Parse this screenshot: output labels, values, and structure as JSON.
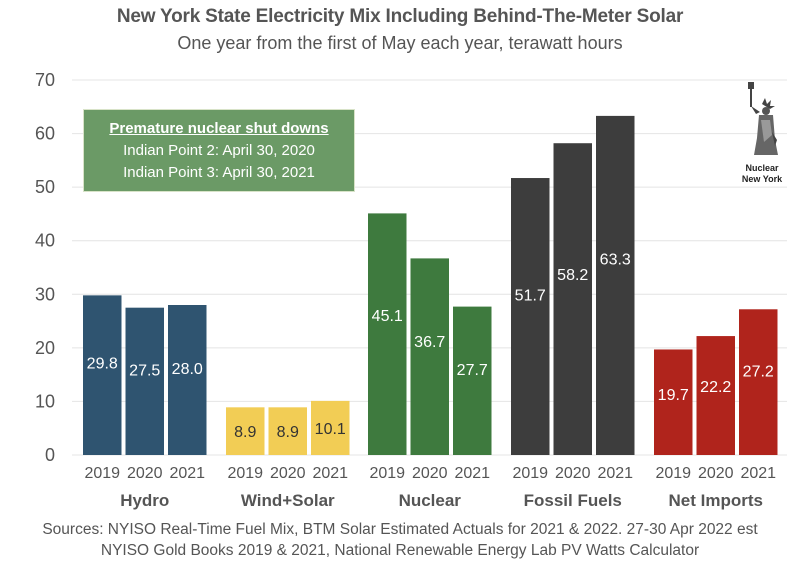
{
  "chart_data": {
    "type": "bar",
    "title": "New York State Electricity Mix Including Behind-The-Meter Solar",
    "subtitle": "One year from the first of May each year, terawatt hours",
    "xlabel": "",
    "ylabel": "",
    "ylim": [
      0,
      70
    ],
    "yticks": [
      0,
      10,
      20,
      30,
      40,
      50,
      60,
      70
    ],
    "grid": true,
    "years": [
      "2019",
      "2020",
      "2021"
    ],
    "groups": [
      {
        "name": "Hydro",
        "color": "#2f5470",
        "label_color": "#ffffff",
        "values": [
          29.8,
          27.5,
          28.0
        ],
        "labels": [
          "29.8",
          "27.5",
          "28.0"
        ]
      },
      {
        "name": "Wind+Solar",
        "color": "#f2cd55",
        "label_color": "#333333",
        "values": [
          8.9,
          8.9,
          10.1
        ],
        "labels": [
          "8.9",
          "8.9",
          "10.1"
        ]
      },
      {
        "name": "Nuclear",
        "color": "#3e7a3e",
        "label_color": "#ffffff",
        "values": [
          45.1,
          36.7,
          27.7
        ],
        "labels": [
          "45.1",
          "36.7",
          "27.7"
        ]
      },
      {
        "name": "Fossil Fuels",
        "color": "#3d3d3d",
        "label_color": "#ffffff",
        "values": [
          51.7,
          58.2,
          63.3
        ],
        "labels": [
          "51.7",
          "58.2",
          "63.3"
        ]
      },
      {
        "name": "Net Imports",
        "color": "#b0241c",
        "label_color": "#ffffff",
        "values": [
          19.7,
          22.2,
          27.2
        ],
        "labels": [
          "19.7",
          "22.2",
          "27.2"
        ]
      }
    ],
    "annotation": {
      "heading": "Premature nuclear shut downs",
      "lines": [
        "Indian Point 2: April 30, 2020",
        "Indian Point 3: April 30, 2021"
      ]
    }
  },
  "logo": {
    "icon": "statue-of-liberty-icon",
    "line1": "Nuclear",
    "line2": "New York"
  },
  "sources": {
    "line1": "Sources: NYISO Real-Time Fuel Mix, BTM Solar Estimated Actuals for 2021 & 2022. 27-30 Apr 2022 est",
    "line2": "NYISO Gold Books 2019 & 2021, National Renewable Energy Lab PV Watts Calculator"
  }
}
